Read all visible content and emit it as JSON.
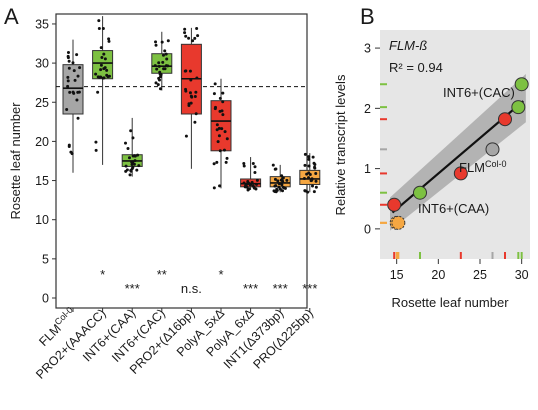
{
  "panel_a": {
    "letter": "A",
    "ylabel": "Rosette leaf number",
    "yticks": [
      0,
      5,
      10,
      15,
      20,
      25,
      30,
      35
    ],
    "categories": [
      "FLM^Col-0",
      "PRO2+(AAACC)",
      "INT6+(CAA)",
      "INT6+(CAC)",
      "PRO2+(Δ16bp)",
      "PolyA_5xΔ",
      "PolyA_6xΔ",
      "INT1(Δ373bp)",
      "PRO(Δ225bp)"
    ]
  },
  "panel_b": {
    "letter": "B",
    "title": "FLM-ß",
    "r2": "R² = 0.94",
    "xlabel": "Rosette leaf number",
    "ylabel": "Relative transcript levels",
    "xticks": [
      15,
      20,
      25,
      30
    ],
    "yticks": [
      0,
      1,
      2,
      3
    ],
    "annotations": {
      "cac": "INT6+(CAC)",
      "col_main": "FLM",
      "col_sup": "Col-0",
      "caa": "INT6+(CAA)"
    }
  },
  "colors": {
    "gray": "#a6a6a6",
    "green": "#7dc142",
    "red": "#e8392d",
    "orange": "#f5a742",
    "panel_bg": "#e6e6e6",
    "band": "#a9a9a9"
  },
  "chart_data": [
    {
      "type": "box",
      "title": "",
      "ylabel": "Rosette leaf number",
      "ylim": [
        0,
        36
      ],
      "reference_line": 27,
      "categories": [
        "FLM^Col-0",
        "PRO2+(AAACC)",
        "INT6+(CAA)",
        "INT6+(CAC)",
        "PRO2+(Δ16bp)",
        "PolyA_5xΔ",
        "PolyA_6xΔ",
        "INT1(Δ373bp)",
        "PRO(Δ225bp)"
      ],
      "boxes": [
        {
          "color": "gray",
          "min": 16,
          "q1": 23.5,
          "median": 26.8,
          "q3": 29.8,
          "max": 33
        },
        {
          "color": "green",
          "min": 17,
          "q1": 28,
          "median": 30,
          "q3": 31.6,
          "max": 36
        },
        {
          "color": "green",
          "min": 15.5,
          "q1": 16.8,
          "median": 17.5,
          "q3": 18.3,
          "max": 23
        },
        {
          "color": "green",
          "min": 26.5,
          "q1": 28.7,
          "median": 29.6,
          "q3": 31.2,
          "max": 34
        },
        {
          "color": "red",
          "min": 16.5,
          "q1": 23.5,
          "median": 28,
          "q3": 32.4,
          "max": 34.5
        },
        {
          "color": "red",
          "min": 14,
          "q1": 18.8,
          "median": 22.6,
          "q3": 25.2,
          "max": 28
        },
        {
          "color": "red",
          "min": 13.8,
          "q1": 14.2,
          "median": 14.6,
          "q3": 15.2,
          "max": 18
        },
        {
          "color": "orange",
          "min": 13.5,
          "q1": 14.2,
          "median": 14.7,
          "q3": 15.5,
          "max": 17
        },
        {
          "color": "orange",
          "min": 13.5,
          "q1": 14.5,
          "median": 15.2,
          "q3": 16.3,
          "max": 18.5
        }
      ],
      "significance": [
        "",
        "*",
        "***",
        "**",
        "n.s.",
        "*",
        "***",
        "***",
        "***"
      ]
    },
    {
      "type": "scatter",
      "title": "FLM-ß",
      "xlabel": "Rosette leaf number",
      "ylabel": "Relative transcript levels",
      "xlim": [
        13,
        31
      ],
      "ylim": [
        -0.5,
        3.3
      ],
      "grid": false,
      "points": [
        {
          "x": 14.7,
          "y": 0.4,
          "color": "red"
        },
        {
          "x": 15.0,
          "y": 0.1,
          "color": "orange"
        },
        {
          "x": 15.2,
          "y": 0.1,
          "color": "orange"
        },
        {
          "x": 17.8,
          "y": 0.6,
          "color": "green"
        },
        {
          "x": 22.7,
          "y": 0.92,
          "color": "red"
        },
        {
          "x": 26.5,
          "y": 1.32,
          "color": "gray"
        },
        {
          "x": 28.0,
          "y": 1.82,
          "color": "red"
        },
        {
          "x": 29.6,
          "y": 2.02,
          "color": "green"
        },
        {
          "x": 30.0,
          "y": 2.4,
          "color": "green"
        }
      ],
      "fit": {
        "x": [
          14.5,
          30.2
        ],
        "y": [
          0.27,
          2.12
        ]
      }
    }
  ]
}
